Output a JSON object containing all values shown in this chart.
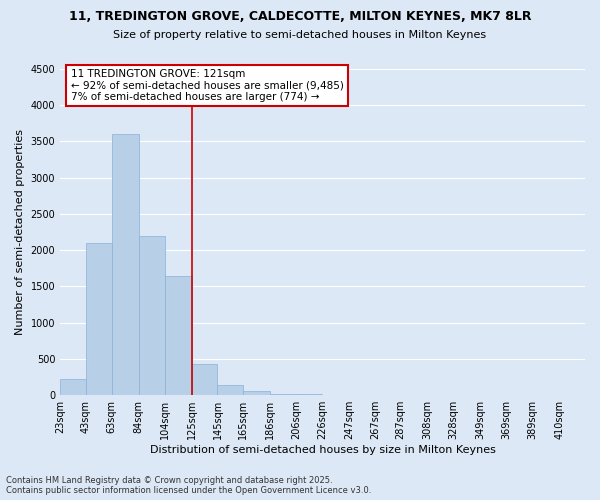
{
  "title_line1": "11, TREDINGTON GROVE, CALDECOTTE, MILTON KEYNES, MK7 8LR",
  "title_line2": "Size of property relative to semi-detached houses in Milton Keynes",
  "xlabel": "Distribution of semi-detached houses by size in Milton Keynes",
  "ylabel": "Number of semi-detached properties",
  "footnote": "Contains HM Land Registry data © Crown copyright and database right 2025.\nContains public sector information licensed under the Open Government Licence v3.0.",
  "annotation_title": "11 TREDINGTON GROVE: 121sqm",
  "annotation_line2": "← 92% of semi-detached houses are smaller (9,485)",
  "annotation_line3": "7% of semi-detached houses are larger (774) →",
  "vline_x": 125,
  "bar_edges": [
    23,
    43,
    63,
    84,
    104,
    125,
    145,
    165,
    186,
    206,
    226,
    247,
    267,
    287,
    308,
    328,
    349,
    369,
    389,
    410,
    430
  ],
  "bar_heights": [
    230,
    2100,
    3600,
    2200,
    1650,
    430,
    140,
    60,
    20,
    10,
    5,
    3,
    2,
    1,
    1,
    1,
    0,
    0,
    0,
    0
  ],
  "bar_color": "#b8cfe8",
  "bar_edge_color": "#8ab0d8",
  "vline_color": "#cc0000",
  "annotation_box_edge_color": "#cc0000",
  "background_color": "#dce8f5",
  "plot_bg_color": "#dce8f5",
  "ylim": [
    0,
    4500
  ],
  "yticks": [
    0,
    500,
    1000,
    1500,
    2000,
    2500,
    3000,
    3500,
    4000,
    4500
  ],
  "grid_color": "#ffffff",
  "title_fontsize": 9,
  "subtitle_fontsize": 8,
  "ylabel_fontsize": 8,
  "xlabel_fontsize": 8,
  "tick_fontsize": 7,
  "footnote_fontsize": 6
}
